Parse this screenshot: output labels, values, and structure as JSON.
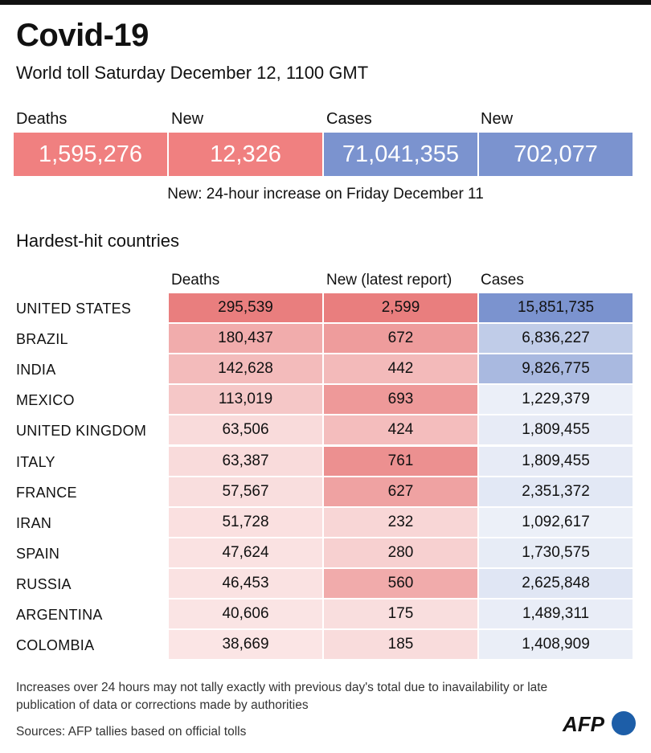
{
  "header": {
    "title": "Covid-19",
    "subtitle": "World toll Saturday December 12, 1100 GMT"
  },
  "summary": [
    {
      "label": "Deaths",
      "value": "1,595,276",
      "color": "#f08080"
    },
    {
      "label": "New",
      "value": "12,326",
      "color": "#f08080"
    },
    {
      "label": "Cases",
      "value": "71,041,355",
      "color": "#7b93cf"
    },
    {
      "label": "New",
      "value": "702,077",
      "color": "#7b93cf"
    }
  ],
  "summary_note": "New: 24-hour increase on Friday December 11",
  "section_title": "Hardest-hit countries",
  "columns": [
    "Deaths",
    "New (latest report)",
    "Cases"
  ],
  "colors": {
    "red": "#e97e7e",
    "blue": "#7b93cf",
    "top_bar": "#111111",
    "logo_blue": "#1d5ea8"
  },
  "chart_data": {
    "type": "table",
    "title": "Hardest-hit countries",
    "columns": [
      "Deaths",
      "New (latest report)",
      "Cases"
    ],
    "rows": [
      {
        "country": "UNITED STATES",
        "deaths": "295,539",
        "new": "2,599",
        "cases": "15,851,735",
        "deaths_n": 295539,
        "new_n": 2599,
        "cases_n": 15851735
      },
      {
        "country": "BRAZIL",
        "deaths": "180,437",
        "new": "672",
        "cases": "6,836,227",
        "deaths_n": 180437,
        "new_n": 672,
        "cases_n": 6836227
      },
      {
        "country": "INDIA",
        "deaths": "142,628",
        "new": "442",
        "cases": "9,826,775",
        "deaths_n": 142628,
        "new_n": 442,
        "cases_n": 9826775
      },
      {
        "country": "MEXICO",
        "deaths": "113,019",
        "new": "693",
        "cases": "1,229,379",
        "deaths_n": 113019,
        "new_n": 693,
        "cases_n": 1229379
      },
      {
        "country": "UNITED KINGDOM",
        "deaths": "63,506",
        "new": "424",
        "cases": "1,809,455",
        "deaths_n": 63506,
        "new_n": 424,
        "cases_n": 1809455
      },
      {
        "country": "ITALY",
        "deaths": "63,387",
        "new": "761",
        "cases": "1,809,455",
        "deaths_n": 63387,
        "new_n": 761,
        "cases_n": 1809455
      },
      {
        "country": "FRANCE",
        "deaths": "57,567",
        "new": "627",
        "cases": "2,351,372",
        "deaths_n": 57567,
        "new_n": 627,
        "cases_n": 2351372
      },
      {
        "country": "IRAN",
        "deaths": "51,728",
        "new": "232",
        "cases": "1,092,617",
        "deaths_n": 51728,
        "new_n": 232,
        "cases_n": 1092617
      },
      {
        "country": "SPAIN",
        "deaths": "47,624",
        "new": "280",
        "cases": "1,730,575",
        "deaths_n": 47624,
        "new_n": 280,
        "cases_n": 1730575
      },
      {
        "country": "RUSSIA",
        "deaths": "46,453",
        "new": "560",
        "cases": "2,625,848",
        "deaths_n": 46453,
        "new_n": 560,
        "cases_n": 2625848
      },
      {
        "country": "ARGENTINA",
        "deaths": "40,606",
        "new": "175",
        "cases": "1,489,311",
        "deaths_n": 40606,
        "new_n": 175,
        "cases_n": 1489311
      },
      {
        "country": "COLOMBIA",
        "deaths": "38,669",
        "new": "185",
        "cases": "1,408,909",
        "deaths_n": 38669,
        "new_n": 185,
        "cases_n": 1408909
      }
    ]
  },
  "footnote": "Increases over 24 hours may not tally exactly with previous day's total due to inavailability or late publication of data or corrections made by authorities",
  "sources": "Sources: AFP tallies based on official tolls",
  "logo_text": "AFP"
}
